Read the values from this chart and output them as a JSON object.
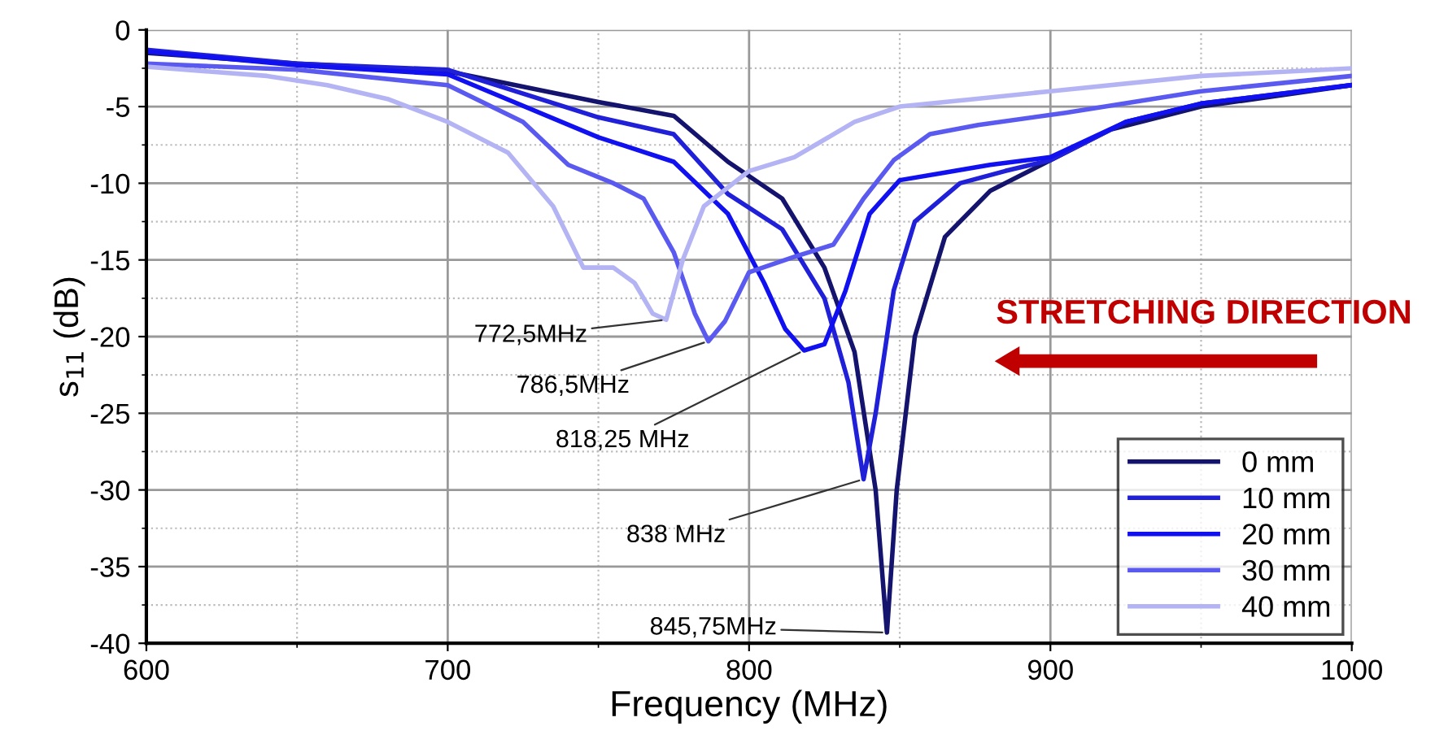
{
  "chart_data": {
    "type": "line",
    "xlabel": "Frequency (MHz)",
    "ylabel": "s$_{11}$ (dB)",
    "xlim": [
      600,
      1000
    ],
    "xticks": [
      600,
      700,
      800,
      900,
      1000
    ],
    "ylim": [
      -40,
      0
    ],
    "yticks": [
      -40,
      -35,
      -30,
      -25,
      -20,
      -15,
      -10,
      -5,
      0
    ],
    "grid": true,
    "legend": "bottom right",
    "marker": "none",
    "line_style": "solid",
    "series": [
      {
        "name": "0 mm",
        "color": "#14146e",
        "x": [
          600,
          650,
          700,
          750,
          775,
          793,
          811,
          825,
          835,
          842,
          845.75,
          849,
          855,
          865,
          880,
          900,
          920,
          950,
          1000
        ],
        "values": [
          -1.5,
          -2.2,
          -2.7,
          -4.7,
          -5.6,
          -8.6,
          -11,
          -15.5,
          -21,
          -30,
          -39.3,
          -30,
          -20,
          -13.5,
          -10.5,
          -8.5,
          -6.5,
          -5,
          -3.6
        ]
      },
      {
        "name": "10 mm",
        "color": "#2020d8",
        "x": [
          600,
          650,
          700,
          750,
          775,
          793,
          811,
          825,
          833,
          838,
          842,
          848,
          855,
          870,
          885,
          900,
          925,
          950,
          1000
        ],
        "values": [
          -1.3,
          -2.2,
          -2.6,
          -5.7,
          -6.8,
          -10.7,
          -13,
          -17.5,
          -23,
          -29.3,
          -25,
          -17,
          -12.5,
          -10,
          -9.2,
          -8.5,
          -6,
          -4.8,
          -3.6
        ]
      },
      {
        "name": "20 mm",
        "color": "#1010f0",
        "x": [
          600,
          650,
          700,
          750,
          775,
          793,
          805,
          812,
          818.25,
          825,
          832,
          840,
          850,
          865,
          880,
          900,
          925,
          950,
          1000
        ],
        "values": [
          -1.4,
          -2.3,
          -2.9,
          -7,
          -8.6,
          -12,
          -16.5,
          -19.5,
          -20.9,
          -20.5,
          -17,
          -12,
          -9.8,
          -9.3,
          -8.8,
          -8.3,
          -6,
          -4.8,
          -3.6
        ]
      },
      {
        "name": "30 mm",
        "color": "#5a5af0",
        "x": [
          600,
          650,
          700,
          725,
          740,
          755,
          765,
          775,
          782,
          786.5,
          792,
          800,
          815,
          828,
          838,
          848,
          860,
          876,
          905,
          950,
          1000
        ],
        "values": [
          -2.2,
          -2.6,
          -3.6,
          -6,
          -8.8,
          -10,
          -11,
          -14.5,
          -18.5,
          -20.3,
          -19,
          -15.8,
          -14.8,
          -14,
          -11,
          -8.5,
          -6.8,
          -6.2,
          -5.4,
          -4,
          -3
        ]
      },
      {
        "name": "40 mm",
        "color": "#b4b4f4",
        "x": [
          600,
          640,
          660,
          680,
          700,
          720,
          735,
          745,
          755,
          762,
          768,
          772.5,
          778,
          785,
          800,
          815,
          822,
          835,
          850,
          875,
          900,
          950,
          1000
        ],
        "values": [
          -2.4,
          -3,
          -3.6,
          -4.5,
          -6,
          -8,
          -11.5,
          -15.5,
          -15.5,
          -16.5,
          -18.5,
          -18.9,
          -15,
          -11.5,
          -9.2,
          -8.3,
          -7.5,
          -6,
          -5,
          -4.5,
          -4,
          -3,
          -2.5
        ]
      }
    ],
    "annotations": [
      {
        "text": "772,5MHz",
        "x": 772.5,
        "y": -18.9
      },
      {
        "text": "786,5MHz",
        "x": 786.5,
        "y": -20.3
      },
      {
        "text": "818,25 MHz",
        "x": 818.25,
        "y": -20.9
      },
      {
        "text": "838 MHz",
        "x": 838,
        "y": -29.3
      },
      {
        "text": "845,75MHz",
        "x": 845.75,
        "y": -39.3
      },
      "STRETCHING DIRECTION"
    ]
  }
}
